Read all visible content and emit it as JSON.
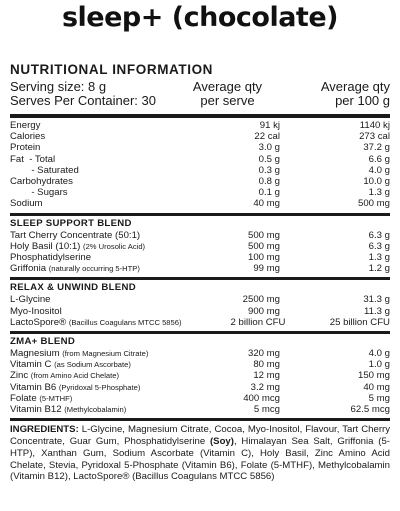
{
  "title": "sleep+ (chocolate)",
  "heading": "NUTRITIONAL INFORMATION",
  "serving_size": "Serving size: 8 g",
  "serves": "Serves Per Container: 30",
  "col1": [
    "Average qty",
    "per serve"
  ],
  "col2": [
    "Average qty",
    "per 100 g"
  ],
  "nutrition": [
    {
      "name": "Energy",
      "serve": "91 kj",
      "per100": "1140 kj"
    },
    {
      "name": "Calories",
      "serve": "22 cal",
      "per100": "273 cal"
    },
    {
      "name": "Protein",
      "serve": "3.0 g",
      "per100": "37.2 g"
    },
    {
      "name": "Fat  - Total",
      "serve": "0.5 g",
      "per100": "6.6 g"
    },
    {
      "name": "        - Saturated",
      "serve": "0.3 g",
      "per100": "4.0 g"
    },
    {
      "name": "Carbohydrates",
      "serve": "0.8 g",
      "per100": "10.0 g"
    },
    {
      "name": "        - Sugars",
      "serve": "0.1 g",
      "per100": "1.3 g"
    },
    {
      "name": "Sodium",
      "serve": "40 mg",
      "per100": "500 mg"
    }
  ],
  "sections": [
    {
      "title": "SLEEP SUPPORT BLEND",
      "rows": [
        {
          "name": "Tart Cherry Concentrate (50:1)",
          "sub": "",
          "serve": "500 mg",
          "per100": "6.3 g"
        },
        {
          "name": "Holy Basil (10:1) ",
          "sub": "(2% Urosolic Acid)",
          "serve": "500 mg",
          "per100": "6.3 g"
        },
        {
          "name": "Phosphatidylserine",
          "sub": "",
          "serve": "100 mg",
          "per100": "1.3 g"
        },
        {
          "name": "Griffonia ",
          "sub": "(naturally occurring 5-HTP)",
          "serve": "99 mg",
          "per100": "1.2 g"
        }
      ]
    },
    {
      "title": "RELAX & UNWIND BLEND",
      "rows": [
        {
          "name": "L-Glycine",
          "sub": "",
          "serve": "2500 mg",
          "per100": "31.3 g"
        },
        {
          "name": "Myo-Inositol",
          "sub": "",
          "serve": "900 mg",
          "per100": "11.3 g"
        },
        {
          "name": "LactoSpore® ",
          "sub": "(Bacillus Coagulans MTCC 5856)",
          "serve": "2 billion CFU",
          "per100": "25 billion CFU"
        }
      ]
    },
    {
      "title": "ZMA+ BLEND",
      "rows": [
        {
          "name": "Magnesium ",
          "sub": "(from Magnesium Citrate)",
          "serve": "320 mg",
          "per100": "4.0 g"
        },
        {
          "name": "Vitamin C ",
          "sub": "(as Sodium Ascorbate)",
          "serve": "80 mg",
          "per100": "1.0 g"
        },
        {
          "name": "Zinc ",
          "sub": "(from Amino Acid Chelate)",
          "serve": "12 mg",
          "per100": "150 mg"
        },
        {
          "name": "Vitamin B6 ",
          "sub": "(Pyridoxal 5-Phosphate)",
          "serve": "3.2 mg",
          "per100": "40 mg"
        },
        {
          "name": "Folate ",
          "sub": "(5-MTHF)",
          "serve": "400 mcg",
          "per100": "5 mg"
        },
        {
          "name": "Vitamin B12 ",
          "sub": "(Methylcobalamin)",
          "serve": "5 mcg",
          "per100": "62.5 mcg"
        }
      ]
    }
  ],
  "ingredients": {
    "label": "INGREDIENTS:",
    "text_a": " L-Glycine, Magnesium Citrate, Cocoa, Myo-Inositol, Flavour, Tart Cherry Concentrate, Guar Gum, Phosphatidylserine ",
    "allergen": "(Soy)",
    "text_b": ", Himalayan Sea Salt, Griffonia (5-HTP), Xanthan Gum, Sodium Ascorbate (Vitamin C), Holy Basil, Zinc Amino Acid Chelate, Stevia, Pyridoxal 5-Phosphate (Vitamin B6), Folate (5-MTHF), Methylcobalamin (Vitamin B12), LactoSpore® (Bacillus Coagulans MTCC 5856)"
  }
}
